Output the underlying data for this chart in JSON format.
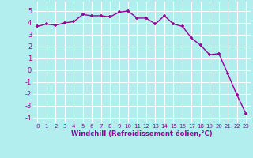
{
  "x": [
    0,
    1,
    2,
    3,
    4,
    5,
    6,
    7,
    8,
    9,
    10,
    11,
    12,
    13,
    14,
    15,
    16,
    17,
    18,
    19,
    20,
    21,
    22,
    23
  ],
  "y": [
    3.7,
    3.9,
    3.8,
    4.0,
    4.1,
    4.7,
    4.6,
    4.6,
    4.5,
    4.9,
    5.0,
    4.4,
    4.4,
    3.9,
    4.6,
    3.9,
    3.7,
    2.7,
    2.1,
    1.3,
    1.4,
    -0.3,
    -2.1,
    -3.7
  ],
  "line_color": "#990099",
  "marker": "+",
  "marker_color": "#990099",
  "bg_color": "#b2eeee",
  "grid_color": "#ffffff",
  "xlabel": "Windchill (Refroidissement éolien,°C)",
  "xlabel_color": "#990099",
  "tick_color": "#990099",
  "xlim": [
    -0.5,
    23.5
  ],
  "ylim": [
    -4.5,
    5.8
  ],
  "yticks": [
    -4,
    -3,
    -2,
    -1,
    0,
    1,
    2,
    3,
    4,
    5
  ],
  "xticks": [
    0,
    1,
    2,
    3,
    4,
    5,
    6,
    7,
    8,
    9,
    10,
    11,
    12,
    13,
    14,
    15,
    16,
    17,
    18,
    19,
    20,
    21,
    22,
    23
  ],
  "linewidth": 1.0,
  "markersize": 3
}
